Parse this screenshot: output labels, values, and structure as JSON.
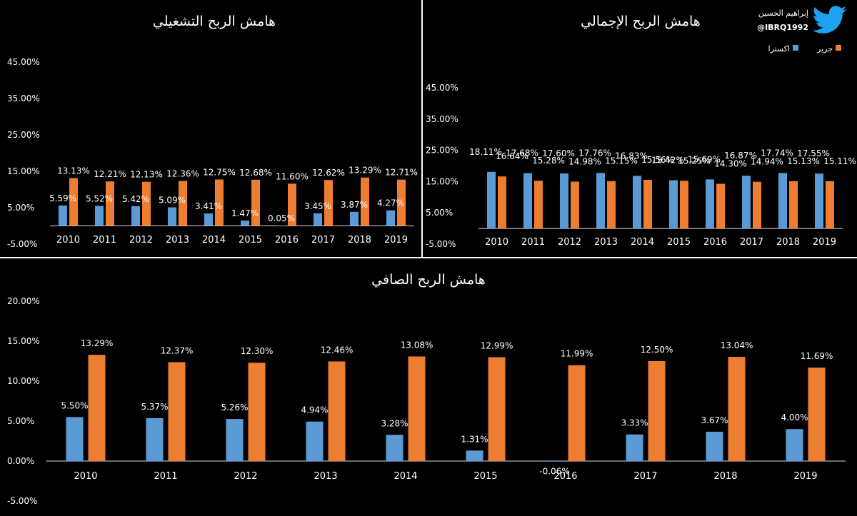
{
  "brand": {
    "name": "إبراهيم الحسين",
    "handle": "@IBRQ1992",
    "bird_color": "#1da1f2"
  },
  "colors": {
    "series_a": "#5b9bd5",
    "series_b": "#ed7d31",
    "axis": "#d9d9d9",
    "background": "#000000",
    "text": "#ffffff"
  },
  "legend": {
    "series_b": "جرير",
    "series_a": "اكسترا"
  },
  "chart_data": [
    {
      "id": "operating",
      "type": "bar",
      "title": "هامش الربح التشغيلي",
      "categories": [
        "2010",
        "2011",
        "2012",
        "2013",
        "2014",
        "2015",
        "2016",
        "2017",
        "2018",
        "2019"
      ],
      "series": [
        {
          "name": "اكسترا",
          "values": [
            5.59,
            5.52,
            5.42,
            5.09,
            3.41,
            1.47,
            0.05,
            3.45,
            3.87,
            4.27
          ],
          "labels": [
            "5.59%",
            "5.52%",
            "5.42%",
            "5.09%",
            "3.41%",
            "1.47%",
            "0.05%",
            "3.45%",
            "3.87%",
            "4.27%"
          ]
        },
        {
          "name": "جرير",
          "values": [
            13.13,
            12.21,
            12.13,
            12.36,
            12.75,
            12.68,
            11.6,
            12.62,
            13.29,
            12.71
          ],
          "labels": [
            "13.13%",
            "12.21%",
            "12.13%",
            "12.36%",
            "12.75%",
            "12.68%",
            "11.60%",
            "12.62%",
            "13.29%",
            "12.71%"
          ]
        }
      ],
      "ylim": [
        -5,
        45
      ],
      "ticks": [
        45,
        35,
        25,
        15,
        5,
        -5
      ],
      "tick_labels": [
        "45.00%",
        "35.00%",
        "25.00%",
        "15.00%",
        "5.00%",
        "-5.00%"
      ]
    },
    {
      "id": "gross",
      "type": "bar",
      "title": "هامش الربح الإجمالي",
      "categories": [
        "2010",
        "2011",
        "2012",
        "2013",
        "2014",
        "2015",
        "2016",
        "2017",
        "2018",
        "2019"
      ],
      "series": [
        {
          "name": "اكسترا",
          "values": [
            18.11,
            17.68,
            17.6,
            17.76,
            16.83,
            15.42,
            15.69,
            16.87,
            17.74,
            17.55
          ],
          "labels": [
            "18.11%",
            "17.68%",
            "17.60%",
            "17.76%",
            "16.83%",
            "15.42%",
            "15.69%",
            "16.87%",
            "17.74%",
            "17.55%"
          ]
        },
        {
          "name": "جرير",
          "values": [
            16.64,
            15.28,
            14.98,
            15.15,
            15.56,
            15.25,
            14.3,
            14.94,
            15.13,
            15.11
          ],
          "labels": [
            "16.64%",
            "15.28%",
            "14.98%",
            "15.15%",
            "15.56%",
            "15.25%",
            "14.30%",
            "14.94%",
            "15.13%",
            "15.11%"
          ]
        }
      ],
      "ylim": [
        -5,
        45
      ],
      "ticks": [
        45,
        35,
        25,
        15,
        5,
        -5
      ],
      "tick_labels": [
        "45.00%",
        "35.00%",
        "25.00%",
        "15.00%",
        "5.00%",
        "-5.00%"
      ]
    },
    {
      "id": "net",
      "type": "bar",
      "title": "هامش الربح الصافي",
      "categories": [
        "2010",
        "2011",
        "2012",
        "2013",
        "2014",
        "2015",
        "2016",
        "2017",
        "2018",
        "2019"
      ],
      "series": [
        {
          "name": "اكسترا",
          "values": [
            5.5,
            5.37,
            5.26,
            4.94,
            3.28,
            1.31,
            -0.06,
            3.33,
            3.67,
            4.0
          ],
          "labels": [
            "5.50%",
            "5.37%",
            "5.26%",
            "4.94%",
            "3.28%",
            "1.31%",
            "-0.06%",
            "3.33%",
            "3.67%",
            "4.00%"
          ]
        },
        {
          "name": "جرير",
          "values": [
            13.29,
            12.37,
            12.3,
            12.46,
            13.08,
            12.99,
            11.99,
            12.5,
            13.04,
            11.69
          ],
          "labels": [
            "13.29%",
            "12.37%",
            "12.30%",
            "12.46%",
            "13.08%",
            "12.99%",
            "11.99%",
            "12.50%",
            "13.04%",
            "11.69%"
          ]
        }
      ],
      "ylim": [
        -5,
        20
      ],
      "ticks": [
        20,
        15,
        10,
        5,
        0,
        -5
      ],
      "tick_labels": [
        "20.00%",
        "15.00%",
        "10.00%",
        "5.00%",
        "0.00%",
        "-5.00%"
      ]
    }
  ]
}
